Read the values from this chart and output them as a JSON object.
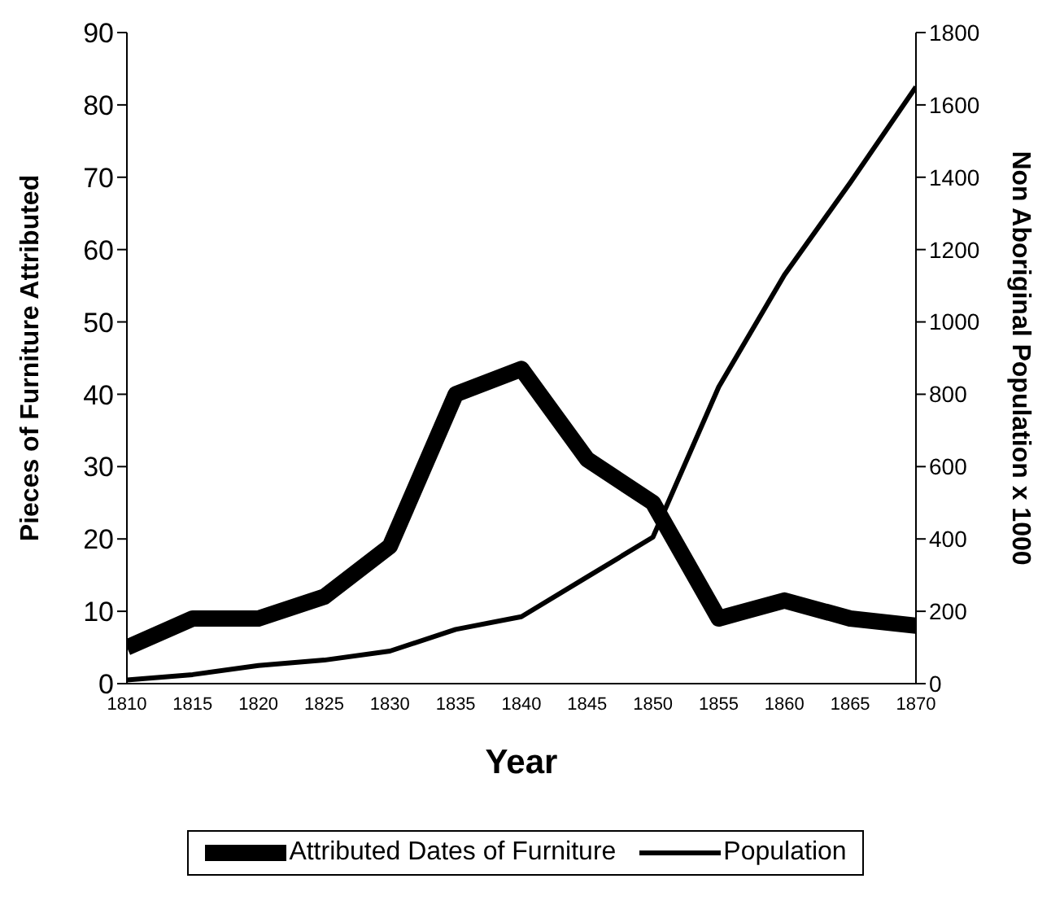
{
  "chart_data": {
    "type": "line",
    "xlabel": "Year",
    "ylabel": "Pieces of Furniture Attributed",
    "y2label": "Non Aboriginal Population x 1000",
    "x": [
      1810,
      1815,
      1820,
      1825,
      1830,
      1835,
      1840,
      1845,
      1850,
      1855,
      1860,
      1865,
      1870
    ],
    "xlim": [
      1810,
      1870
    ],
    "xticks": [
      1810,
      1815,
      1820,
      1825,
      1830,
      1835,
      1840,
      1845,
      1850,
      1855,
      1860,
      1865,
      1870
    ],
    "ylim": [
      0,
      90
    ],
    "yticks": [
      0,
      10,
      20,
      30,
      40,
      50,
      60,
      70,
      80,
      90
    ],
    "y2lim": [
      0,
      1800
    ],
    "y2ticks": [
      0,
      200,
      400,
      600,
      800,
      1000,
      1200,
      1400,
      1600,
      1800
    ],
    "series": [
      {
        "name": "Attributed Dates of Furniture",
        "color": "#000000",
        "values": [
          5,
          9,
          9,
          12,
          19,
          40,
          43.5,
          31,
          25,
          9,
          11.5,
          9,
          8
        ]
      },
      {
        "name": "Population",
        "color": "#000000",
        "axis": "y2",
        "values": [
          10,
          25,
          50,
          65,
          90,
          150,
          185,
          295,
          405,
          820,
          1130,
          1385,
          1650
        ]
      }
    ],
    "grid": false,
    "legend": "bottom",
    "marker": "none",
    "line_style": "solid"
  }
}
